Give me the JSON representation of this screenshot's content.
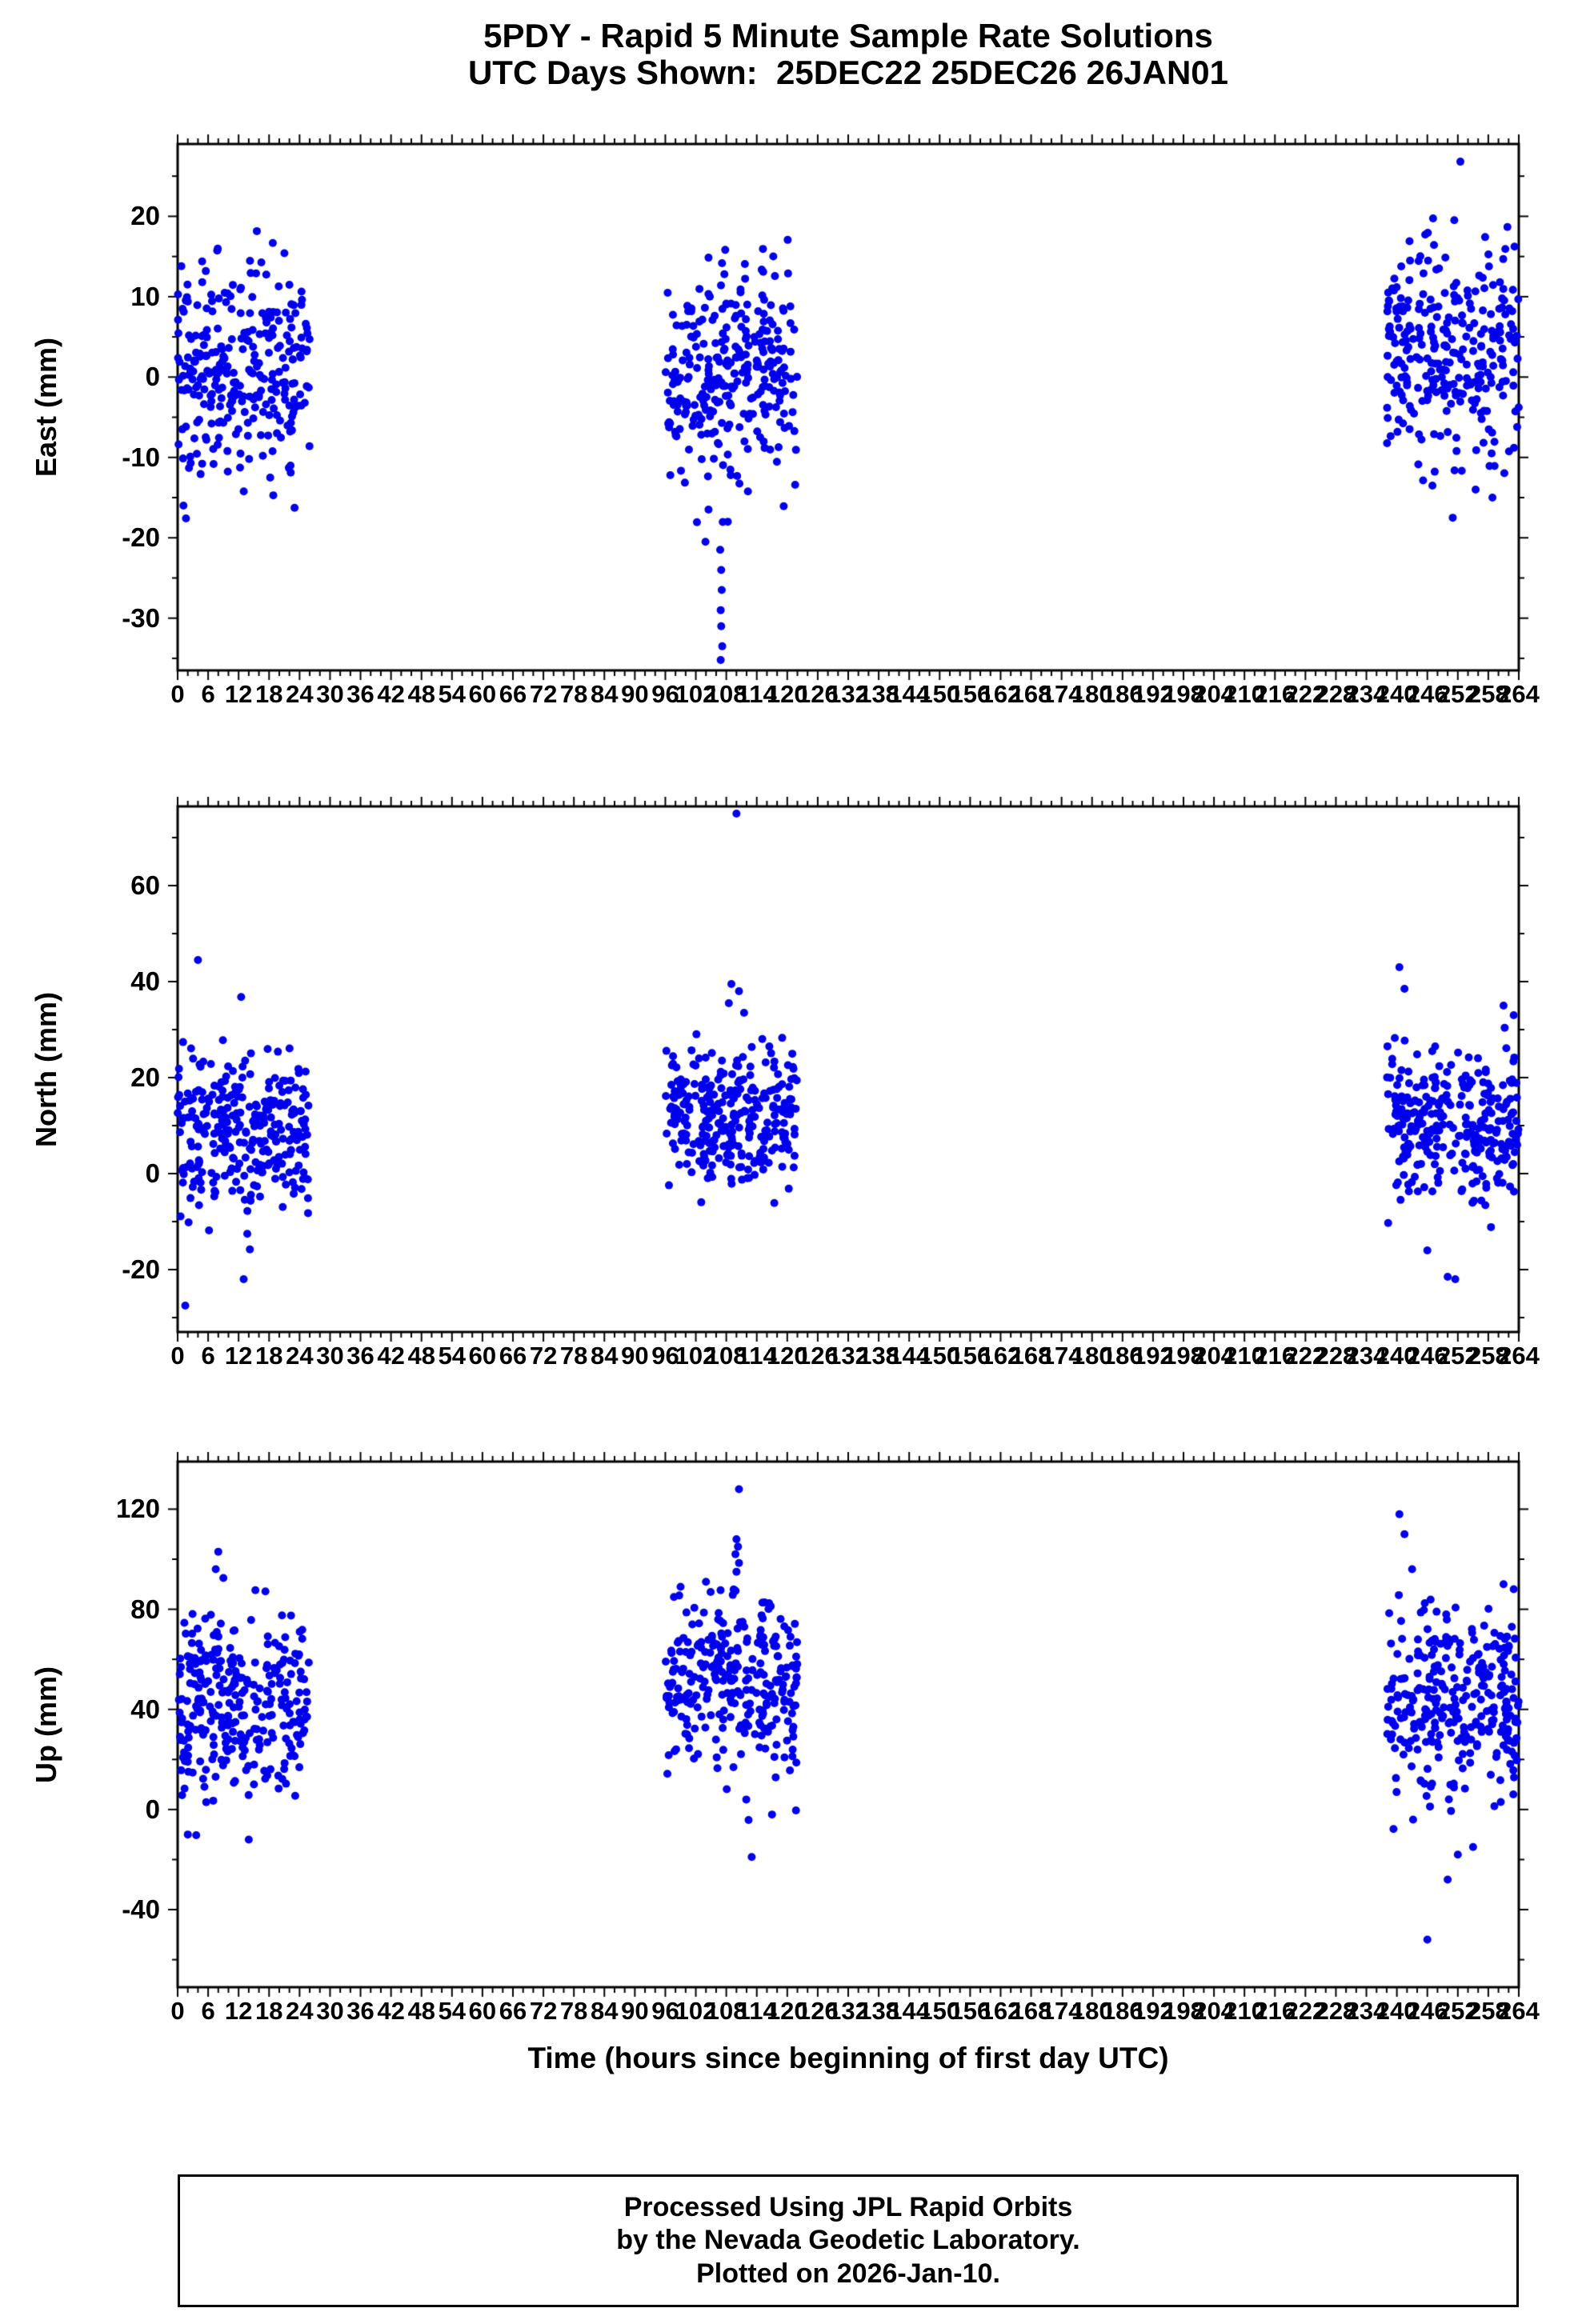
{
  "station_id": "5PDY",
  "title": {
    "line1": "5PDY - Rapid 5 Minute Sample Rate Solutions",
    "line2": "UTC Days Shown:  25DEC22 25DEC26 26JAN01"
  },
  "days_shown": [
    "25DEC22",
    "25DEC26",
    "26JAN01"
  ],
  "x_axis_title": "Time (hours since beginning of first day UTC)",
  "footer": {
    "line1": "Processed Using JPL Rapid Orbits",
    "line2": "by the Nevada Geodetic Laboratory.",
    "line3": "Plotted on 2026-Jan-10."
  },
  "colors": {
    "marker": "#0000ee",
    "axis": "#000000",
    "background": "#ffffff"
  },
  "xticks": [
    0,
    6,
    12,
    18,
    24,
    30,
    36,
    42,
    48,
    54,
    60,
    66,
    72,
    78,
    84,
    90,
    96,
    102,
    108,
    114,
    120,
    126,
    132,
    138,
    144,
    150,
    156,
    162,
    168,
    174,
    180,
    186,
    192,
    198,
    204,
    210,
    216,
    222,
    228,
    234,
    240,
    246,
    252,
    258,
    264
  ],
  "chart_data": [
    {
      "type": "scatter",
      "ylabel": "East (mm)",
      "xlabel": "Time (hours since beginning of first day UTC)",
      "xlim": [
        0,
        264
      ],
      "ylim": [
        -36.5,
        29
      ],
      "yticks": [
        -30,
        -20,
        -10,
        0,
        10,
        20
      ],
      "ytick_minor_step": 5,
      "xtick_step": 6,
      "xtick_minor_step": 2,
      "marker_color": "#0000ee",
      "clusters": [
        {
          "x_start": 0,
          "x_end": 26,
          "n": 288,
          "mean": 0.5,
          "std": 7.0,
          "min": -18.5,
          "max": 21,
          "seed": 101
        },
        {
          "x_start": 96,
          "x_end": 122,
          "n": 288,
          "mean": 1.0,
          "std": 6.5,
          "min": -20.0,
          "max": 18,
          "seed": 102
        },
        {
          "x_start": 238,
          "x_end": 264,
          "n": 288,
          "mean": 2.5,
          "std": 7.0,
          "min": -18.0,
          "max": 21,
          "seed": 103
        }
      ],
      "outliers": [
        [
          106.8,
          -21.5
        ],
        [
          107.0,
          -24
        ],
        [
          107.1,
          -26.5
        ],
        [
          106.9,
          -29
        ],
        [
          107.0,
          -31
        ],
        [
          107.2,
          -33.5
        ],
        [
          106.9,
          -35.2
        ],
        [
          104.5,
          -16.5
        ],
        [
          108.3,
          -18
        ],
        [
          103.9,
          -20.5
        ],
        [
          252.5,
          26.8
        ],
        [
          251.0,
          -17.5
        ],
        [
          247.0,
          -13.5
        ],
        [
          255.5,
          -14
        ]
      ]
    },
    {
      "type": "scatter",
      "ylabel": "North (mm)",
      "xlabel": "Time (hours since beginning of first day UTC)",
      "xlim": [
        0,
        264
      ],
      "ylim": [
        -33,
        76.5
      ],
      "yticks": [
        -20,
        0,
        20,
        40,
        60
      ],
      "ytick_minor_step": 10,
      "xtick_step": 6,
      "xtick_minor_step": 2,
      "marker_color": "#0000ee",
      "clusters": [
        {
          "x_start": 0,
          "x_end": 26,
          "n": 288,
          "mean": 9,
          "std": 8.5,
          "min": -24,
          "max": 31,
          "seed": 201
        },
        {
          "x_start": 96,
          "x_end": 122,
          "n": 288,
          "mean": 12,
          "std": 7.0,
          "min": -15,
          "max": 33,
          "seed": 202
        },
        {
          "x_start": 238,
          "x_end": 264,
          "n": 288,
          "mean": 11,
          "std": 8.0,
          "min": -17,
          "max": 32,
          "seed": 203
        }
      ],
      "outliers": [
        [
          4,
          44.5
        ],
        [
          12.5,
          36.8
        ],
        [
          1.5,
          -27.5
        ],
        [
          13,
          -22
        ],
        [
          110,
          75
        ],
        [
          109,
          39.5
        ],
        [
          110.5,
          38
        ],
        [
          108.5,
          35.5
        ],
        [
          111.5,
          33.5
        ],
        [
          240.5,
          43
        ],
        [
          241.5,
          38.5
        ],
        [
          261,
          35
        ],
        [
          263,
          33
        ],
        [
          250,
          -21.5
        ],
        [
          251.5,
          -22
        ],
        [
          246,
          -16
        ]
      ]
    },
    {
      "type": "scatter",
      "ylabel": "Up (mm)",
      "xlabel": "Time (hours since beginning of first day UTC)",
      "xlim": [
        0,
        264
      ],
      "ylim": [
        -71,
        139
      ],
      "yticks": [
        -40,
        0,
        40,
        80,
        120
      ],
      "ytick_minor_step": 20,
      "xtick_step": 6,
      "xtick_minor_step": 2,
      "marker_color": "#0000ee",
      "clusters": [
        {
          "x_start": 0,
          "x_end": 26,
          "n": 288,
          "mean": 42,
          "std": 19,
          "min": -12,
          "max": 88,
          "seed": 301
        },
        {
          "x_start": 96,
          "x_end": 122,
          "n": 288,
          "mean": 50,
          "std": 17,
          "min": -8,
          "max": 90,
          "seed": 302
        },
        {
          "x_start": 238,
          "x_end": 264,
          "n": 288,
          "mean": 43,
          "std": 18,
          "min": -12,
          "max": 92,
          "seed": 303
        }
      ],
      "outliers": [
        [
          8,
          103
        ],
        [
          7.5,
          96
        ],
        [
          9,
          92.5
        ],
        [
          2,
          -10
        ],
        [
          14,
          -12
        ],
        [
          110.5,
          128
        ],
        [
          110,
          108
        ],
        [
          110.3,
          105
        ],
        [
          109.8,
          102
        ],
        [
          110.5,
          98.5
        ],
        [
          110,
          95
        ],
        [
          104,
          91
        ],
        [
          99,
          89
        ],
        [
          113,
          -19
        ],
        [
          117,
          -2
        ],
        [
          240.5,
          118
        ],
        [
          241.5,
          110
        ],
        [
          243,
          96
        ],
        [
          261,
          90
        ],
        [
          263,
          88
        ],
        [
          246,
          -52
        ],
        [
          250,
          -28
        ],
        [
          252,
          -18
        ],
        [
          255,
          -15
        ]
      ]
    }
  ]
}
